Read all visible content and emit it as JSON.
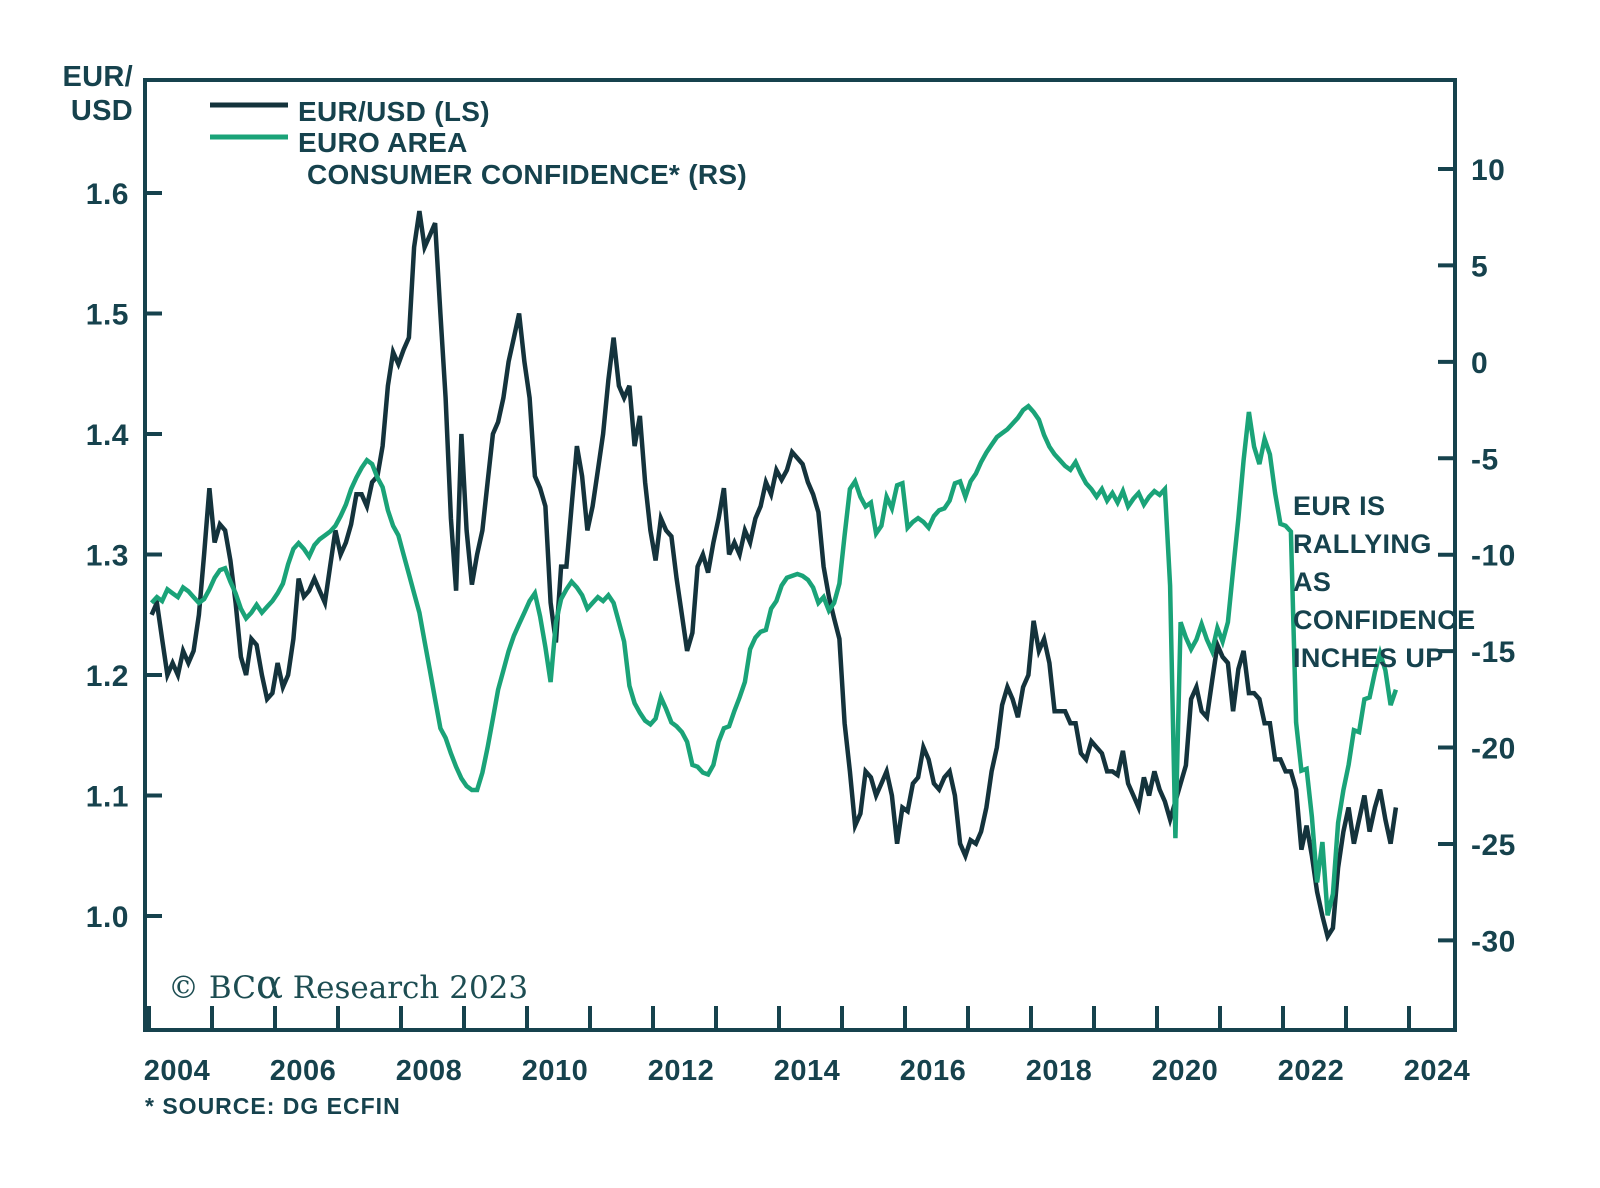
{
  "colors": {
    "navy": "#14333c",
    "green": "#1aa378",
    "red": "#c0343a",
    "text": "#16424d"
  },
  "footnote": "* SOURCE: DG ECFIN",
  "logo": {
    "prefix": "© BC",
    "alpha": "α",
    "suffix": " Research 2023"
  },
  "chart_data": {
    "type": "line",
    "title": "",
    "x_frequency": "monthly",
    "x_start_year": 2004,
    "x_axis": {
      "tick_years": [
        2004,
        2005,
        2006,
        2007,
        2008,
        2009,
        2010,
        2011,
        2012,
        2013,
        2014,
        2015,
        2016,
        2017,
        2018,
        2019,
        2020,
        2021,
        2022,
        2023,
        2024
      ],
      "labels": [
        "2004",
        "2006",
        "2008",
        "2010",
        "2012",
        "2014",
        "2016",
        "2018",
        "2020",
        "2022",
        "2024"
      ]
    },
    "left_axis": {
      "title_lines": [
        "EUR/",
        "USD"
      ],
      "ticks": [
        "1.6",
        "1.5",
        "1.4",
        "1.3",
        "1.2",
        "1.1",
        "1.0"
      ],
      "min": 0.905,
      "max": 1.694
    },
    "right_axis": {
      "ticks": [
        "10",
        "5",
        "0",
        "-5",
        "-10",
        "-15",
        "-20",
        "-25",
        "-30"
      ],
      "min": -34.3,
      "max": 14.6
    },
    "legend": [
      {
        "name": "EUR/USD (LS)",
        "color_key": "navy",
        "lines": [
          "EUR/USD (LS)"
        ]
      },
      {
        "name": "EURO AREA CONSUMER CONFIDENCE* (RS)",
        "color_key": "green",
        "lines": [
          "EURO AREA",
          "CONSUMER CONFIDENCE* (RS)"
        ]
      }
    ],
    "annotation": {
      "lines": [
        "EUR IS",
        "RALLYING",
        "AS",
        "CONFIDENCE",
        "INCHES UP"
      ],
      "color_key": "red"
    },
    "series": [
      {
        "name": "EUR/USD (LS)",
        "axis": "left",
        "color_key": "navy",
        "values": [
          1.25,
          1.26,
          1.23,
          1.2,
          1.21,
          1.2,
          1.22,
          1.21,
          1.22,
          1.25,
          1.3,
          1.355,
          1.31,
          1.325,
          1.32,
          1.295,
          1.26,
          1.215,
          1.2,
          1.23,
          1.225,
          1.2,
          1.18,
          1.185,
          1.21,
          1.19,
          1.2,
          1.23,
          1.28,
          1.265,
          1.27,
          1.28,
          1.27,
          1.26,
          1.29,
          1.32,
          1.3,
          1.31,
          1.325,
          1.35,
          1.35,
          1.34,
          1.36,
          1.365,
          1.39,
          1.44,
          1.468,
          1.458,
          1.47,
          1.48,
          1.555,
          1.585,
          1.555,
          1.565,
          1.575,
          1.5,
          1.43,
          1.33,
          1.27,
          1.4,
          1.32,
          1.275,
          1.3,
          1.32,
          1.36,
          1.4,
          1.41,
          1.43,
          1.46,
          1.48,
          1.5,
          1.46,
          1.43,
          1.365,
          1.355,
          1.34,
          1.26,
          1.227,
          1.29,
          1.29,
          1.34,
          1.39,
          1.365,
          1.32,
          1.34,
          1.37,
          1.4,
          1.445,
          1.48,
          1.44,
          1.43,
          1.44,
          1.39,
          1.415,
          1.36,
          1.32,
          1.295,
          1.33,
          1.32,
          1.315,
          1.28,
          1.25,
          1.22,
          1.235,
          1.29,
          1.3,
          1.285,
          1.31,
          1.33,
          1.355,
          1.3,
          1.31,
          1.3,
          1.32,
          1.31,
          1.33,
          1.34,
          1.36,
          1.35,
          1.37,
          1.362,
          1.37,
          1.385,
          1.38,
          1.375,
          1.36,
          1.35,
          1.335,
          1.29,
          1.265,
          1.247,
          1.23,
          1.16,
          1.12,
          1.075,
          1.085,
          1.12,
          1.115,
          1.1,
          1.11,
          1.12,
          1.1,
          1.06,
          1.09,
          1.087,
          1.11,
          1.115,
          1.14,
          1.13,
          1.11,
          1.105,
          1.115,
          1.12,
          1.1,
          1.06,
          1.05,
          1.063,
          1.06,
          1.07,
          1.09,
          1.12,
          1.14,
          1.175,
          1.19,
          1.18,
          1.165,
          1.19,
          1.2,
          1.245,
          1.22,
          1.23,
          1.21,
          1.17,
          1.17,
          1.17,
          1.16,
          1.16,
          1.135,
          1.13,
          1.145,
          1.14,
          1.135,
          1.12,
          1.12,
          1.117,
          1.137,
          1.11,
          1.1,
          1.09,
          1.115,
          1.1,
          1.12,
          1.105,
          1.095,
          1.08,
          1.095,
          1.11,
          1.125,
          1.18,
          1.19,
          1.17,
          1.165,
          1.195,
          1.225,
          1.215,
          1.21,
          1.17,
          1.205,
          1.22,
          1.185,
          1.185,
          1.18,
          1.16,
          1.16,
          1.13,
          1.13,
          1.12,
          1.12,
          1.105,
          1.055,
          1.075,
          1.05,
          1.02,
          1.0,
          0.983,
          0.99,
          1.04,
          1.07,
          1.09,
          1.06,
          1.08,
          1.1,
          1.07,
          1.09,
          1.105,
          1.08,
          1.06,
          1.09
        ]
      },
      {
        "name": "EURO AREA CONSUMER CONFIDENCE* (RS)",
        "axis": "right",
        "color_key": "green",
        "values": [
          -12.5,
          -12.2,
          -12.4,
          -11.8,
          -12.0,
          -12.2,
          -11.7,
          -11.9,
          -12.2,
          -12.5,
          -12.3,
          -11.8,
          -11.2,
          -10.8,
          -10.7,
          -11.4,
          -12.0,
          -12.8,
          -13.3,
          -13.0,
          -12.6,
          -13.0,
          -12.7,
          -12.4,
          -12.0,
          -11.5,
          -10.5,
          -9.7,
          -9.4,
          -9.7,
          -10.1,
          -9.5,
          -9.2,
          -9.0,
          -8.8,
          -8.5,
          -8.0,
          -7.4,
          -6.6,
          -6.0,
          -5.5,
          -5.1,
          -5.3,
          -6.0,
          -6.5,
          -7.7,
          -8.5,
          -9.0,
          -10.0,
          -11.0,
          -12.0,
          -13.0,
          -14.5,
          -16.0,
          -17.5,
          -19.0,
          -19.5,
          -20.3,
          -21.0,
          -21.6,
          -22.0,
          -22.2,
          -22.2,
          -21.3,
          -20.0,
          -18.5,
          -17.0,
          -16.0,
          -15.0,
          -14.2,
          -13.6,
          -13.0,
          -12.4,
          -12.0,
          -13.2,
          -14.8,
          -16.6,
          -13.5,
          -12.3,
          -11.8,
          -11.4,
          -11.7,
          -12.1,
          -12.8,
          -12.5,
          -12.2,
          -12.4,
          -12.1,
          -12.5,
          -13.5,
          -14.5,
          -16.8,
          -17.7,
          -18.2,
          -18.6,
          -18.8,
          -18.5,
          -17.4,
          -18.0,
          -18.7,
          -18.9,
          -19.2,
          -19.7,
          -20.9,
          -21.0,
          -21.3,
          -21.4,
          -20.9,
          -19.7,
          -19.0,
          -18.9,
          -18.1,
          -17.4,
          -16.6,
          -14.9,
          -14.3,
          -14.0,
          -13.9,
          -12.8,
          -12.4,
          -11.6,
          -11.2,
          -11.1,
          -11.0,
          -11.1,
          -11.3,
          -11.7,
          -12.5,
          -12.2,
          -12.9,
          -12.5,
          -11.5,
          -9.0,
          -6.6,
          -6.2,
          -7.0,
          -7.5,
          -7.3,
          -8.9,
          -8.5,
          -7.0,
          -7.6,
          -6.4,
          -6.3,
          -8.6,
          -8.3,
          -8.1,
          -8.3,
          -8.6,
          -8.0,
          -7.7,
          -7.6,
          -7.2,
          -6.3,
          -6.2,
          -7.0,
          -6.2,
          -5.8,
          -5.2,
          -4.7,
          -4.3,
          -3.9,
          -3.7,
          -3.5,
          -3.2,
          -2.9,
          -2.5,
          -2.3,
          -2.6,
          -3.0,
          -3.8,
          -4.4,
          -4.8,
          -5.1,
          -5.4,
          -5.6,
          -5.2,
          -5.8,
          -6.3,
          -6.6,
          -7.0,
          -6.6,
          -7.2,
          -6.8,
          -7.3,
          -6.7,
          -7.5,
          -7.1,
          -6.8,
          -7.4,
          -7.0,
          -6.7,
          -6.9,
          -6.6,
          -11.6,
          -24.7,
          -13.5,
          -14.3,
          -14.9,
          -14.4,
          -13.6,
          -14.4,
          -15.0,
          -13.8,
          -14.5,
          -13.5,
          -10.8,
          -8.1,
          -5.1,
          -2.6,
          -4.4,
          -5.3,
          -4.0,
          -4.8,
          -6.8,
          -8.4,
          -8.5,
          -8.8,
          -18.7,
          -21.2,
          -21.1,
          -23.6,
          -27.0,
          -24.9,
          -28.7,
          -27.6,
          -23.9,
          -22.2,
          -20.9,
          -19.1,
          -19.2,
          -17.5,
          -17.4,
          -16.1,
          -15.1,
          -16.0,
          -17.8,
          -17.0
        ]
      }
    ]
  }
}
